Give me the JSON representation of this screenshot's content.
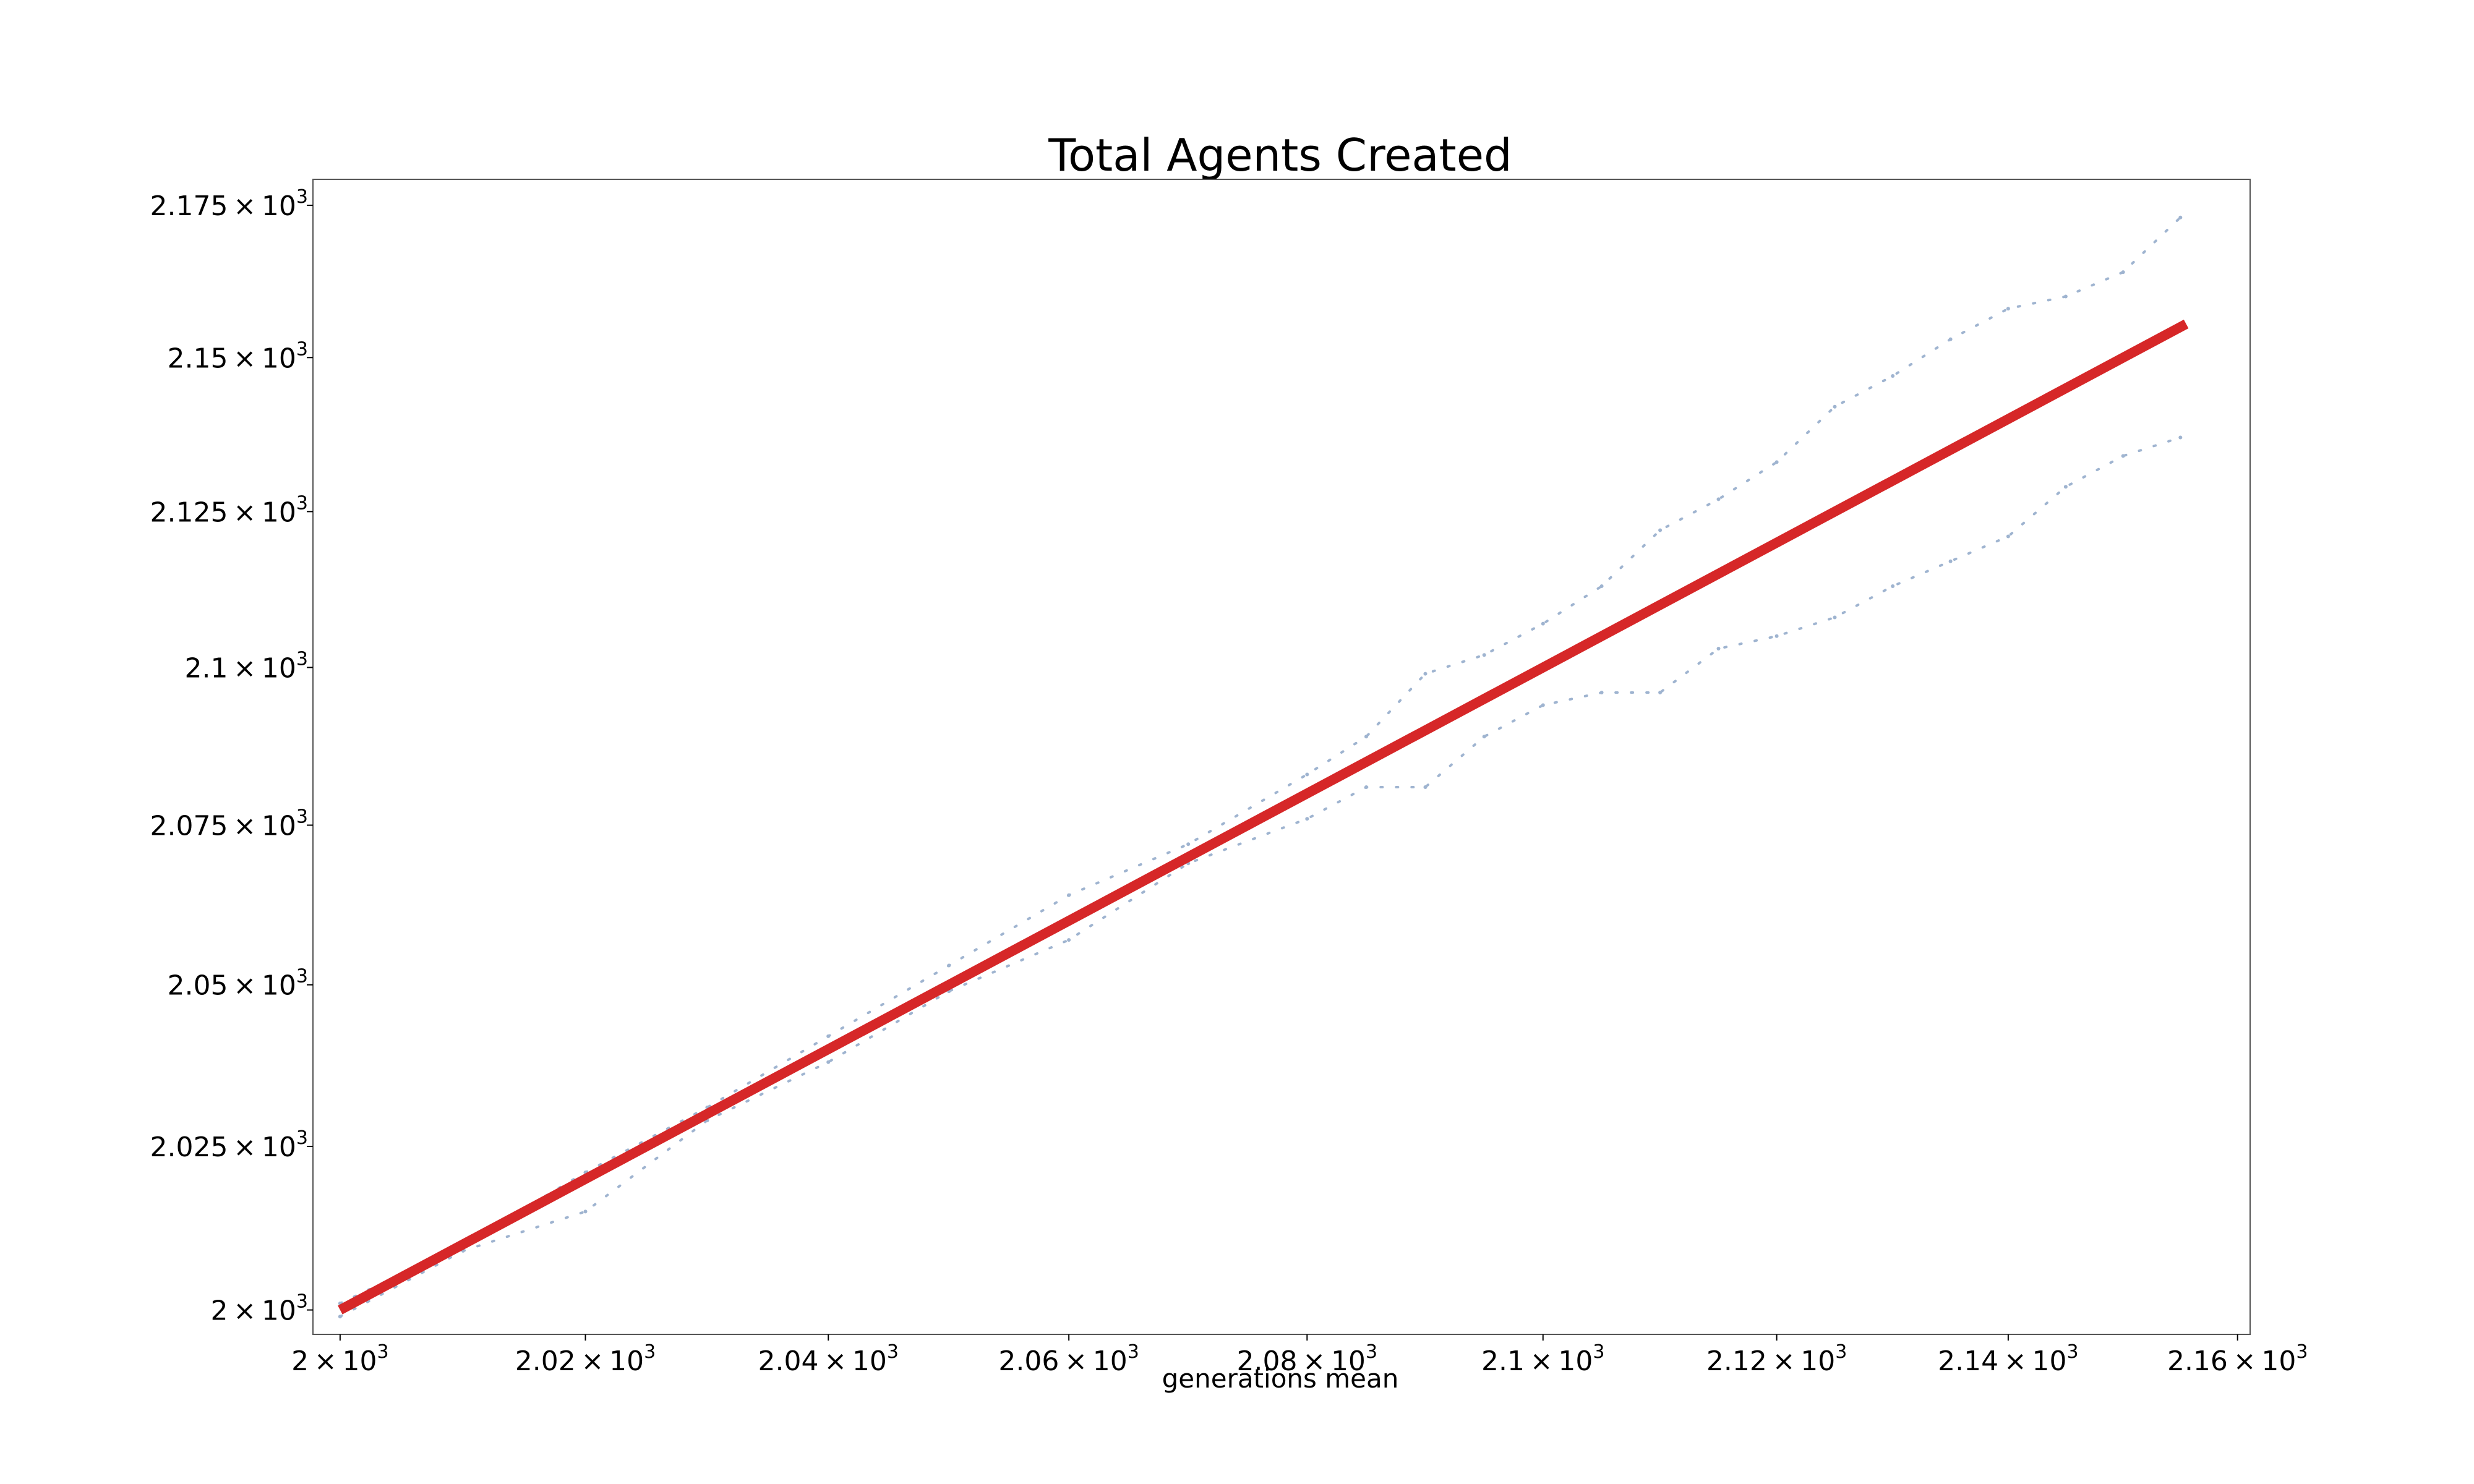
{
  "chart_data": {
    "type": "line",
    "title": "Total Agents Created",
    "xlabel": "generations mean",
    "ylabel": "",
    "scale": "log",
    "xlim": [
      1997.8,
      2161.1
    ],
    "ylim": [
      1996.3,
      2179.3
    ],
    "x_ticks": [
      {
        "value": 2000,
        "mantissa": "2",
        "base": "10",
        "exp": "3"
      },
      {
        "value": 2020,
        "mantissa": "2.02",
        "base": "10",
        "exp": "3"
      },
      {
        "value": 2040,
        "mantissa": "2.04",
        "base": "10",
        "exp": "3"
      },
      {
        "value": 2060,
        "mantissa": "2.06",
        "base": "10",
        "exp": "3"
      },
      {
        "value": 2080,
        "mantissa": "2.08",
        "base": "10",
        "exp": "3"
      },
      {
        "value": 2100,
        "mantissa": "2.1",
        "base": "10",
        "exp": "3"
      },
      {
        "value": 2120,
        "mantissa": "2.12",
        "base": "10",
        "exp": "3"
      },
      {
        "value": 2140,
        "mantissa": "2.14",
        "base": "10",
        "exp": "3"
      },
      {
        "value": 2160,
        "mantissa": "2.16",
        "base": "10",
        "exp": "3"
      }
    ],
    "y_ticks": [
      {
        "value": 2000,
        "mantissa": "2",
        "base": "10",
        "exp": "3"
      },
      {
        "value": 2025,
        "mantissa": "2.025",
        "base": "10",
        "exp": "3"
      },
      {
        "value": 2050,
        "mantissa": "2.05",
        "base": "10",
        "exp": "3"
      },
      {
        "value": 2075,
        "mantissa": "2.075",
        "base": "10",
        "exp": "3"
      },
      {
        "value": 2100,
        "mantissa": "2.1",
        "base": "10",
        "exp": "3"
      },
      {
        "value": 2125,
        "mantissa": "2.125",
        "base": "10",
        "exp": "3"
      },
      {
        "value": 2150,
        "mantissa": "2.15",
        "base": "10",
        "exp": "3"
      },
      {
        "value": 2175,
        "mantissa": "2.175",
        "base": "10",
        "exp": "3"
      }
    ],
    "series": [
      {
        "role": "fit",
        "color": "#d62728",
        "x": [
          2000,
          2155.5
        ],
        "y": [
          2000,
          2155.5
        ]
      },
      {
        "role": "upper-band",
        "color": "#9fb4d0",
        "x": [
          2000,
          2010,
          2020,
          2030,
          2040,
          2050,
          2060,
          2070,
          2080,
          2085,
          2090,
          2095,
          2100,
          2105,
          2110,
          2115,
          2120,
          2125,
          2130,
          2135,
          2140,
          2145,
          2150,
          2155
        ],
        "y": [
          2001,
          2010,
          2021,
          2031,
          2042,
          2053,
          2064,
          2072,
          2083,
          2089,
          2099,
          2102,
          2107,
          2113,
          2122,
          2127,
          2133,
          2142,
          2147,
          2153,
          2158,
          2160,
          2164,
          2173
        ]
      },
      {
        "role": "lower-band",
        "color": "#9fb4d0",
        "x": [
          2000,
          2010,
          2020,
          2030,
          2040,
          2050,
          2060,
          2070,
          2080,
          2085,
          2090,
          2095,
          2100,
          2105,
          2110,
          2115,
          2120,
          2125,
          2130,
          2135,
          2140,
          2145,
          2150,
          2155
        ],
        "y": [
          1999,
          2009,
          2015,
          2029,
          2038,
          2049,
          2057,
          2069,
          2076,
          2081,
          2081,
          2089,
          2094,
          2096,
          2096,
          2103,
          2105,
          2108,
          2113,
          2117,
          2121,
          2129,
          2134,
          2137
        ]
      }
    ]
  }
}
